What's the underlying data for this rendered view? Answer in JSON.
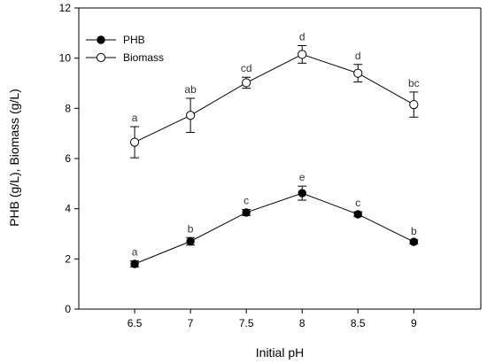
{
  "chart_data": {
    "type": "line",
    "x": [
      6.5,
      7,
      7.5,
      8,
      8.5,
      9
    ],
    "x_tick_labels": [
      "6.5",
      "7",
      "7.5",
      "8",
      "8.5",
      "9"
    ],
    "xlim": [
      6.0,
      9.6
    ],
    "ylim": [
      0,
      12
    ],
    "y_ticks": [
      0,
      2,
      4,
      6,
      8,
      10,
      12
    ],
    "xlabel": "Initial pH",
    "ylabel": "PHB (g/L), Biomass (g/L)",
    "legend_position": "top-left",
    "grid": false,
    "series": [
      {
        "name": "PHB",
        "marker": "filled-circle",
        "color": "#000000",
        "values": [
          1.8,
          2.7,
          3.85,
          4.62,
          3.78,
          2.68
        ],
        "errors": [
          0.12,
          0.15,
          0.12,
          0.28,
          0.1,
          0.08
        ],
        "letters": [
          "a",
          "b",
          "c",
          "e",
          "c",
          "b"
        ]
      },
      {
        "name": "Biomass",
        "marker": "open-circle",
        "color": "#000000",
        "values": [
          6.65,
          7.72,
          9.02,
          10.15,
          9.4,
          8.15
        ],
        "errors": [
          0.62,
          0.68,
          0.22,
          0.35,
          0.35,
          0.5
        ],
        "letters": [
          "a",
          "ab",
          "cd",
          "d",
          "d",
          "bc"
        ]
      }
    ]
  }
}
